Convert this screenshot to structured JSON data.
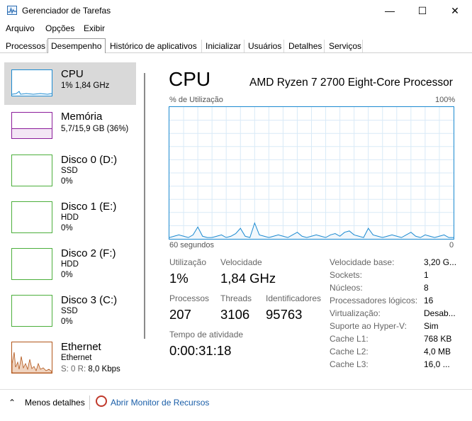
{
  "window": {
    "title": "Gerenciador de Tarefas",
    "min": "—",
    "max": "☐",
    "close": "✕"
  },
  "menu": [
    {
      "label": "Arquivo"
    },
    {
      "label": "Opções"
    },
    {
      "label": "Exibir"
    }
  ],
  "tabs": [
    {
      "label": "Processos"
    },
    {
      "label": "Desempenho"
    },
    {
      "label": "Histórico de aplicativos"
    },
    {
      "label": "Inicializar"
    },
    {
      "label": "Usuários"
    },
    {
      "label": "Detalhes"
    },
    {
      "label": "Serviços"
    }
  ],
  "sidebar": {
    "items": [
      {
        "title": "CPU",
        "line1": "1% 1,84 GHz",
        "line2": ""
      },
      {
        "title": "Memória",
        "line1": "5,7/15,9 GB (36%)",
        "line2": ""
      },
      {
        "title": "Disco 0 (D:)",
        "line1": "SSD",
        "line2": "0%"
      },
      {
        "title": "Disco 1 (E:)",
        "line1": "HDD",
        "line2": "0%"
      },
      {
        "title": "Disco 2 (F:)",
        "line1": "HDD",
        "line2": "0%"
      },
      {
        "title": "Disco 3 (C:)",
        "line1": "SSD",
        "line2": "0%"
      },
      {
        "title": "Ethernet",
        "line1": "Ethernet",
        "line2_prefix": "S: 0 R:",
        "line2": "8,0 Kbps"
      }
    ]
  },
  "main": {
    "title": "CPU",
    "model": "AMD Ryzen 7 2700 Eight-Core Processor",
    "graph_top_left": "% de Utilização",
    "graph_top_right": "100%",
    "graph_bottom_left": "60 segundos",
    "graph_bottom_right": "0",
    "stats": {
      "utilizacao_label": "Utilização",
      "utilizacao": "1%",
      "velocidade_label": "Velocidade",
      "velocidade": "1,84 GHz",
      "processos_label": "Processos",
      "processos": "207",
      "threads_label": "Threads",
      "threads": "3106",
      "ident_label": "Identificadores",
      "ident": "95763",
      "tempo_label": "Tempo de atividade",
      "tempo": "0:00:31:18"
    },
    "details": [
      {
        "k": "Velocidade base:",
        "v": "3,20 G..."
      },
      {
        "k": "Sockets:",
        "v": "1"
      },
      {
        "k": "Núcleos:",
        "v": "8"
      },
      {
        "k": "Processadores lógicos:",
        "v": "16"
      },
      {
        "k": "Virtualização:",
        "v": "Desab..."
      },
      {
        "k": "Suporte ao Hyper-V:",
        "v": "Sim"
      },
      {
        "k": "Cache L1:",
        "v": "768 KB"
      },
      {
        "k": "Cache L2:",
        "v": "4,0 MB"
      },
      {
        "k": "Cache L3:",
        "v": "16,0 ..."
      }
    ]
  },
  "footer": {
    "less": "Menos detalhes",
    "monitor": "Abrir Monitor de Recursos"
  },
  "chart_data": {
    "type": "line",
    "title": "",
    "xlabel": "60 segundos",
    "ylabel": "% de Utilização",
    "ylim": [
      0,
      100
    ],
    "series": [
      {
        "values": [
          1,
          2,
          3,
          2,
          1,
          3,
          9,
          2,
          1,
          1,
          2,
          3,
          1,
          2,
          4,
          8,
          2,
          1,
          12,
          3,
          2,
          1,
          2,
          3,
          2,
          1,
          3,
          5,
          2,
          1,
          2,
          3,
          2,
          1,
          3,
          4,
          2,
          5,
          6,
          3,
          2,
          1,
          8,
          3,
          2,
          1,
          2,
          3,
          2,
          1,
          3,
          5,
          2,
          1,
          3,
          2,
          1,
          2,
          3,
          1,
          1
        ]
      }
    ]
  },
  "colors": {
    "cpu": "#1b8ad1",
    "memory": "#8b1c9a",
    "disk": "#4caf3c",
    "ethernet": "#b2561a"
  }
}
